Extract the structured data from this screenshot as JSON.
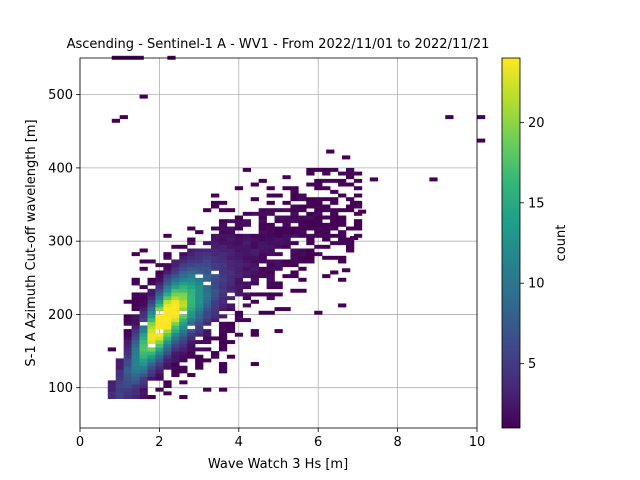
{
  "chart_data": {
    "type": "heatmap",
    "title": "Ascending - Sentinel-1 A - WV1 - From 2022/11/01 to 2022/11/21",
    "xlabel": "Wave Watch 3 Hs [m]",
    "ylabel": "S-1 A Azimuth Cut-off wavelength [m]",
    "xlim": [
      0,
      10
    ],
    "ylim": [
      45,
      550
    ],
    "xticks": [
      0,
      2,
      4,
      6,
      8,
      10
    ],
    "yticks": [
      100,
      200,
      300,
      400,
      500
    ],
    "grid": true,
    "bin_width_x": 0.2,
    "bin_width_y": 5,
    "colorbar": {
      "label": "count",
      "range": [
        1,
        24
      ],
      "ticks": [
        5,
        10,
        15,
        20
      ],
      "colormap": [
        "#440154",
        "#482878",
        "#3e4989",
        "#31688e",
        "#26828e",
        "#1f9e89",
        "#35b779",
        "#6ece58",
        "#b5de2b",
        "#fde725"
      ]
    },
    "density_model": {
      "core_ridge": [
        [
          1.1,
          100
        ],
        [
          1.5,
          135
        ],
        [
          1.9,
          175
        ],
        [
          2.3,
          210
        ],
        [
          2.8,
          235
        ],
        [
          3.5,
          260
        ],
        [
          4.3,
          280
        ],
        [
          5.2,
          305
        ],
        [
          6.3,
          340
        ]
      ],
      "peak_count": 24,
      "peak_location": [
        2.0,
        180
      ]
    },
    "outliers": [
      {
        "x": 0.8,
        "y": 548
      },
      {
        "x": 1.0,
        "y": 548
      },
      {
        "x": 1.2,
        "y": 548
      },
      {
        "x": 1.4,
        "y": 548
      },
      {
        "x": 2.2,
        "y": 548
      },
      {
        "x": 1.5,
        "y": 495
      },
      {
        "x": 1.0,
        "y": 467
      },
      {
        "x": 0.8,
        "y": 462
      },
      {
        "x": 9.2,
        "y": 467
      },
      {
        "x": 10.0,
        "y": 467
      },
      {
        "x": 10.0,
        "y": 435
      },
      {
        "x": 8.8,
        "y": 382
      },
      {
        "x": 7.3,
        "y": 382
      },
      {
        "x": 6.2,
        "y": 420
      },
      {
        "x": 6.6,
        "y": 412
      },
      {
        "x": 6.8,
        "y": 350
      },
      {
        "x": 7.0,
        "y": 338
      },
      {
        "x": 6.6,
        "y": 258
      },
      {
        "x": 6.8,
        "y": 302
      }
    ]
  }
}
